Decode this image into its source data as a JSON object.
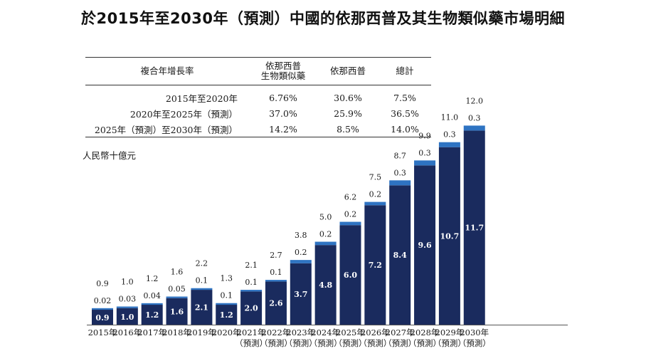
{
  "title": "於2015年至2030年（預測）中國的依那西普及其生物類似藥市場明細",
  "cagr_table": {
    "headers": [
      "複合年增長率",
      "依那西普生物類似藥",
      "依那西普",
      "總計"
    ],
    "header_lines": [
      [
        "複合年增長率"
      ],
      [
        "依那西普",
        "生物類似藥"
      ],
      [
        "依那西普"
      ],
      [
        "總計"
      ]
    ],
    "rows": [
      {
        "period": "2015年至2020年",
        "biosimilar": "6.76%",
        "etanercept": "30.6%",
        "total": "7.5%"
      },
      {
        "period": "2020年至2025年（預測）",
        "biosimilar": "37.0%",
        "etanercept": "25.9%",
        "total": "36.5%"
      },
      {
        "period": "2025年（預測）至2030年（預測）",
        "biosimilar": "14.2%",
        "etanercept": "8.5%",
        "total": "14.0%"
      }
    ]
  },
  "unit_label": "人民幣十億元",
  "colors": {
    "dark_bar": "#1a2b5e",
    "light_bar": "#2e73c2",
    "bar_label": "#ffffff",
    "text": "#1a1a1a"
  },
  "chart_data": {
    "type": "bar",
    "stacked": true,
    "title": "於2015年至2030年（預測）中國的依那西普及其生物類似藥市場明細",
    "ylabel": "人民幣十億元",
    "xlabel": "",
    "categories": [
      {
        "year": "2015年",
        "note": ""
      },
      {
        "year": "2016年",
        "note": ""
      },
      {
        "year": "2017年",
        "note": ""
      },
      {
        "year": "2018年",
        "note": ""
      },
      {
        "year": "2019年",
        "note": ""
      },
      {
        "year": "2020年",
        "note": ""
      },
      {
        "year": "2021年",
        "note": "（預測）"
      },
      {
        "year": "2022年",
        "note": "（預測）"
      },
      {
        "year": "2023年",
        "note": "（預測）"
      },
      {
        "year": "2024年",
        "note": "（預測）"
      },
      {
        "year": "2025年",
        "note": "（預測）"
      },
      {
        "year": "2026年",
        "note": "（預測）"
      },
      {
        "year": "2027年",
        "note": "（預測）"
      },
      {
        "year": "2028年",
        "note": "（預測）"
      },
      {
        "year": "2029年",
        "note": "（預測）"
      },
      {
        "year": "2030年",
        "note": "（預測）"
      }
    ],
    "series": [
      {
        "name": "依那西普生物類似藥",
        "color": "#1a2b5e",
        "values": [
          0.9,
          1.0,
          1.2,
          1.6,
          2.1,
          1.2,
          2.0,
          2.6,
          3.7,
          4.8,
          6.0,
          7.2,
          8.4,
          9.6,
          10.7,
          11.7
        ],
        "labels": [
          "0.9",
          "1.0",
          "1.2",
          "1.6",
          "2.1",
          "1.2",
          "2.0",
          "2.6",
          "3.7",
          "4.8",
          "6.0",
          "7.2",
          "8.4",
          "9.6",
          "10.7",
          "11.7"
        ]
      },
      {
        "name": "依那西普",
        "color": "#2e73c2",
        "values": [
          0.02,
          0.03,
          0.04,
          0.05,
          0.1,
          0.1,
          0.1,
          0.1,
          0.2,
          0.2,
          0.2,
          0.2,
          0.3,
          0.3,
          0.3,
          0.3
        ],
        "labels": [
          "0.02",
          "0.03",
          "0.04",
          "0.05",
          "0.1",
          "0.1",
          "0.1",
          "0.1",
          "0.2",
          "0.2",
          "0.2",
          "0.2",
          "0.3",
          "0.3",
          "0.3",
          "0.3"
        ]
      }
    ],
    "totals": [
      0.9,
      1.0,
      1.2,
      1.6,
      2.2,
      1.3,
      2.1,
      2.7,
      3.8,
      5.0,
      6.2,
      7.5,
      8.7,
      9.9,
      11.0,
      12.0
    ],
    "total_labels": [
      "0.9",
      "1.0",
      "1.2",
      "1.6",
      "2.2",
      "1.3",
      "2.1",
      "2.7",
      "3.8",
      "5.0",
      "6.2",
      "7.5",
      "8.7",
      "9.9",
      "11.0",
      "12.0"
    ],
    "ylim": [
      0,
      12
    ],
    "grid": false,
    "legend": "none"
  }
}
